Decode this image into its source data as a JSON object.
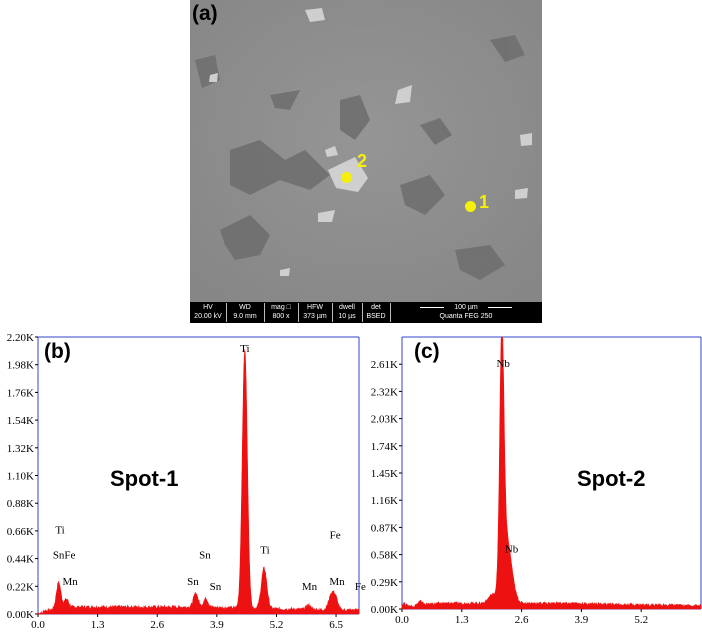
{
  "panel_a": {
    "label": "(a)",
    "spots": [
      {
        "label": "1"
      },
      {
        "label": "2"
      }
    ],
    "info_bar": {
      "hv_label": "HV",
      "hv_value": "20.00 kV",
      "wd_label": "WD",
      "wd_value": "9.0 mm",
      "mag_label": "mag □",
      "mag_value": "800 x",
      "hfw_label": "HFW",
      "hfw_value": "373 µm",
      "dwell_label": "dwell",
      "dwell_value": "10 µs",
      "det_label": "det",
      "det_value": "BSED",
      "scale_label": "100 µm",
      "instrument": "Quanta FEG 250"
    }
  },
  "chart_data": [
    {
      "type": "area",
      "label": "(b)",
      "title": "Spot-1",
      "xlim": [
        0,
        7.0
      ],
      "ylim": [
        0,
        2200
      ],
      "x_ticks": [
        "0.0",
        "1.3",
        "2.6",
        "3.9",
        "5.2",
        "6.5"
      ],
      "x_tick_values": [
        0,
        1.3,
        2.6,
        3.9,
        5.2,
        6.5
      ],
      "y_ticks": [
        "0.00K",
        "0.22K",
        "0.44K",
        "0.66K",
        "0.88K",
        "1.10K",
        "1.32K",
        "1.54K",
        "1.76K",
        "1.98K",
        "2.20K"
      ],
      "y_tick_values": [
        0,
        220,
        440,
        660,
        880,
        1100,
        1320,
        1540,
        1760,
        1980,
        2200
      ],
      "baseline": 55,
      "color": "#ee1111",
      "peaks": [
        {
          "x": 0.45,
          "y": 210,
          "w": 0.05
        },
        {
          "x": 0.62,
          "y": 70,
          "w": 0.05
        },
        {
          "x": 3.44,
          "y": 110,
          "w": 0.05
        },
        {
          "x": 3.66,
          "y": 70,
          "w": 0.05
        },
        {
          "x": 4.51,
          "y": 2050,
          "w": 0.055
        },
        {
          "x": 4.93,
          "y": 320,
          "w": 0.06
        },
        {
          "x": 5.9,
          "y": 35,
          "w": 0.05
        },
        {
          "x": 6.4,
          "y": 120,
          "w": 0.06
        },
        {
          "x": 6.49,
          "y": 80,
          "w": 0.05
        },
        {
          "x": 7.06,
          "y": 30,
          "w": 0.05
        }
      ],
      "peak_labels": [
        {
          "text": "Ti",
          "x": 0.48,
          "y": 640
        },
        {
          "text": "SnFe",
          "x": 0.57,
          "y": 440
        },
        {
          "text": "Mn",
          "x": 0.7,
          "y": 230
        },
        {
          "text": "Sn",
          "x": 3.38,
          "y": 230
        },
        {
          "text": "Sn",
          "x": 3.64,
          "y": 440
        },
        {
          "text": "Sn",
          "x": 3.87,
          "y": 190
        },
        {
          "text": "Ti",
          "x": 4.51,
          "y": 2080
        },
        {
          "text": "Ti",
          "x": 4.95,
          "y": 480
        },
        {
          "text": "Mn",
          "x": 5.92,
          "y": 190
        },
        {
          "text": "Fe",
          "x": 6.48,
          "y": 600
        },
        {
          "text": "Mn",
          "x": 6.52,
          "y": 230
        },
        {
          "text": "Fe",
          "x": 7.03,
          "y": 190
        }
      ]
    },
    {
      "type": "area",
      "label": "(c)",
      "title": "Spot-2",
      "xlim": [
        0,
        6.5
      ],
      "ylim": [
        0,
        2900
      ],
      "x_ticks": [
        "0.0",
        "1.3",
        "2.6",
        "3.9",
        "5.2"
      ],
      "x_tick_values": [
        0,
        1.3,
        2.6,
        3.9,
        5.2
      ],
      "y_ticks": [
        "0.00K",
        "0.29K",
        "0.58K",
        "0.87K",
        "1.16K",
        "1.45K",
        "1.74K",
        "2.03K",
        "2.32K",
        "2.61K"
      ],
      "y_tick_values": [
        0,
        290,
        580,
        870,
        1160,
        1450,
        1740,
        2030,
        2320,
        2610
      ],
      "baseline": 60,
      "color": "#ee1111",
      "peaks": [
        {
          "x": 0.05,
          "y": 50,
          "w": 0.05
        },
        {
          "x": 0.4,
          "y": 40,
          "w": 0.05
        },
        {
          "x": 1.95,
          "y": 80,
          "w": 0.08
        },
        {
          "x": 2.17,
          "y": 2560,
          "w": 0.045
        },
        {
          "x": 2.27,
          "y": 700,
          "w": 0.11
        }
      ],
      "peak_labels": [
        {
          "text": "Nb",
          "x": 2.2,
          "y": 2580
        },
        {
          "text": "Nb",
          "x": 2.38,
          "y": 600
        }
      ]
    }
  ]
}
